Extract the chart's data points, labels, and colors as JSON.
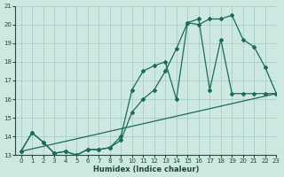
{
  "xlabel": "Humidex (Indice chaleur)",
  "bg_color": "#cce8e0",
  "grid_color": "#aacccc",
  "line_color": "#1a6b5a",
  "xlim": [
    -0.5,
    23
  ],
  "ylim": [
    13,
    21
  ],
  "xticks": [
    0,
    1,
    2,
    3,
    4,
    5,
    6,
    7,
    8,
    9,
    10,
    11,
    12,
    13,
    14,
    15,
    16,
    17,
    18,
    19,
    20,
    21,
    22,
    23
  ],
  "yticks": [
    13,
    14,
    15,
    16,
    17,
    18,
    19,
    20,
    21
  ],
  "line1_x": [
    0,
    1,
    2,
    3,
    4,
    5,
    6,
    7,
    8,
    9,
    10,
    11,
    12,
    13,
    14,
    15,
    16,
    17,
    18,
    19,
    20,
    21,
    22,
    23
  ],
  "line1_y": [
    13.2,
    14.2,
    13.7,
    13.1,
    13.2,
    13.0,
    13.3,
    13.3,
    13.4,
    13.8,
    15.3,
    16.0,
    16.5,
    17.5,
    18.7,
    20.1,
    20.0,
    20.3,
    20.3,
    20.5,
    19.2,
    18.8,
    17.7,
    16.3
  ],
  "line2_x": [
    0,
    1,
    2,
    3,
    4,
    5,
    6,
    7,
    8,
    9,
    10,
    11,
    12,
    13,
    14,
    15,
    16,
    17,
    18,
    19,
    20,
    21,
    22,
    23
  ],
  "line2_y": [
    13.2,
    14.2,
    13.7,
    13.1,
    13.2,
    13.0,
    13.3,
    13.3,
    13.4,
    14.0,
    16.5,
    17.5,
    17.8,
    18.0,
    16.0,
    20.1,
    20.3,
    16.5,
    19.2,
    16.3,
    16.3,
    16.3,
    16.3,
    16.3
  ],
  "line3_x": [
    0,
    23
  ],
  "line3_y": [
    13.2,
    16.3
  ]
}
